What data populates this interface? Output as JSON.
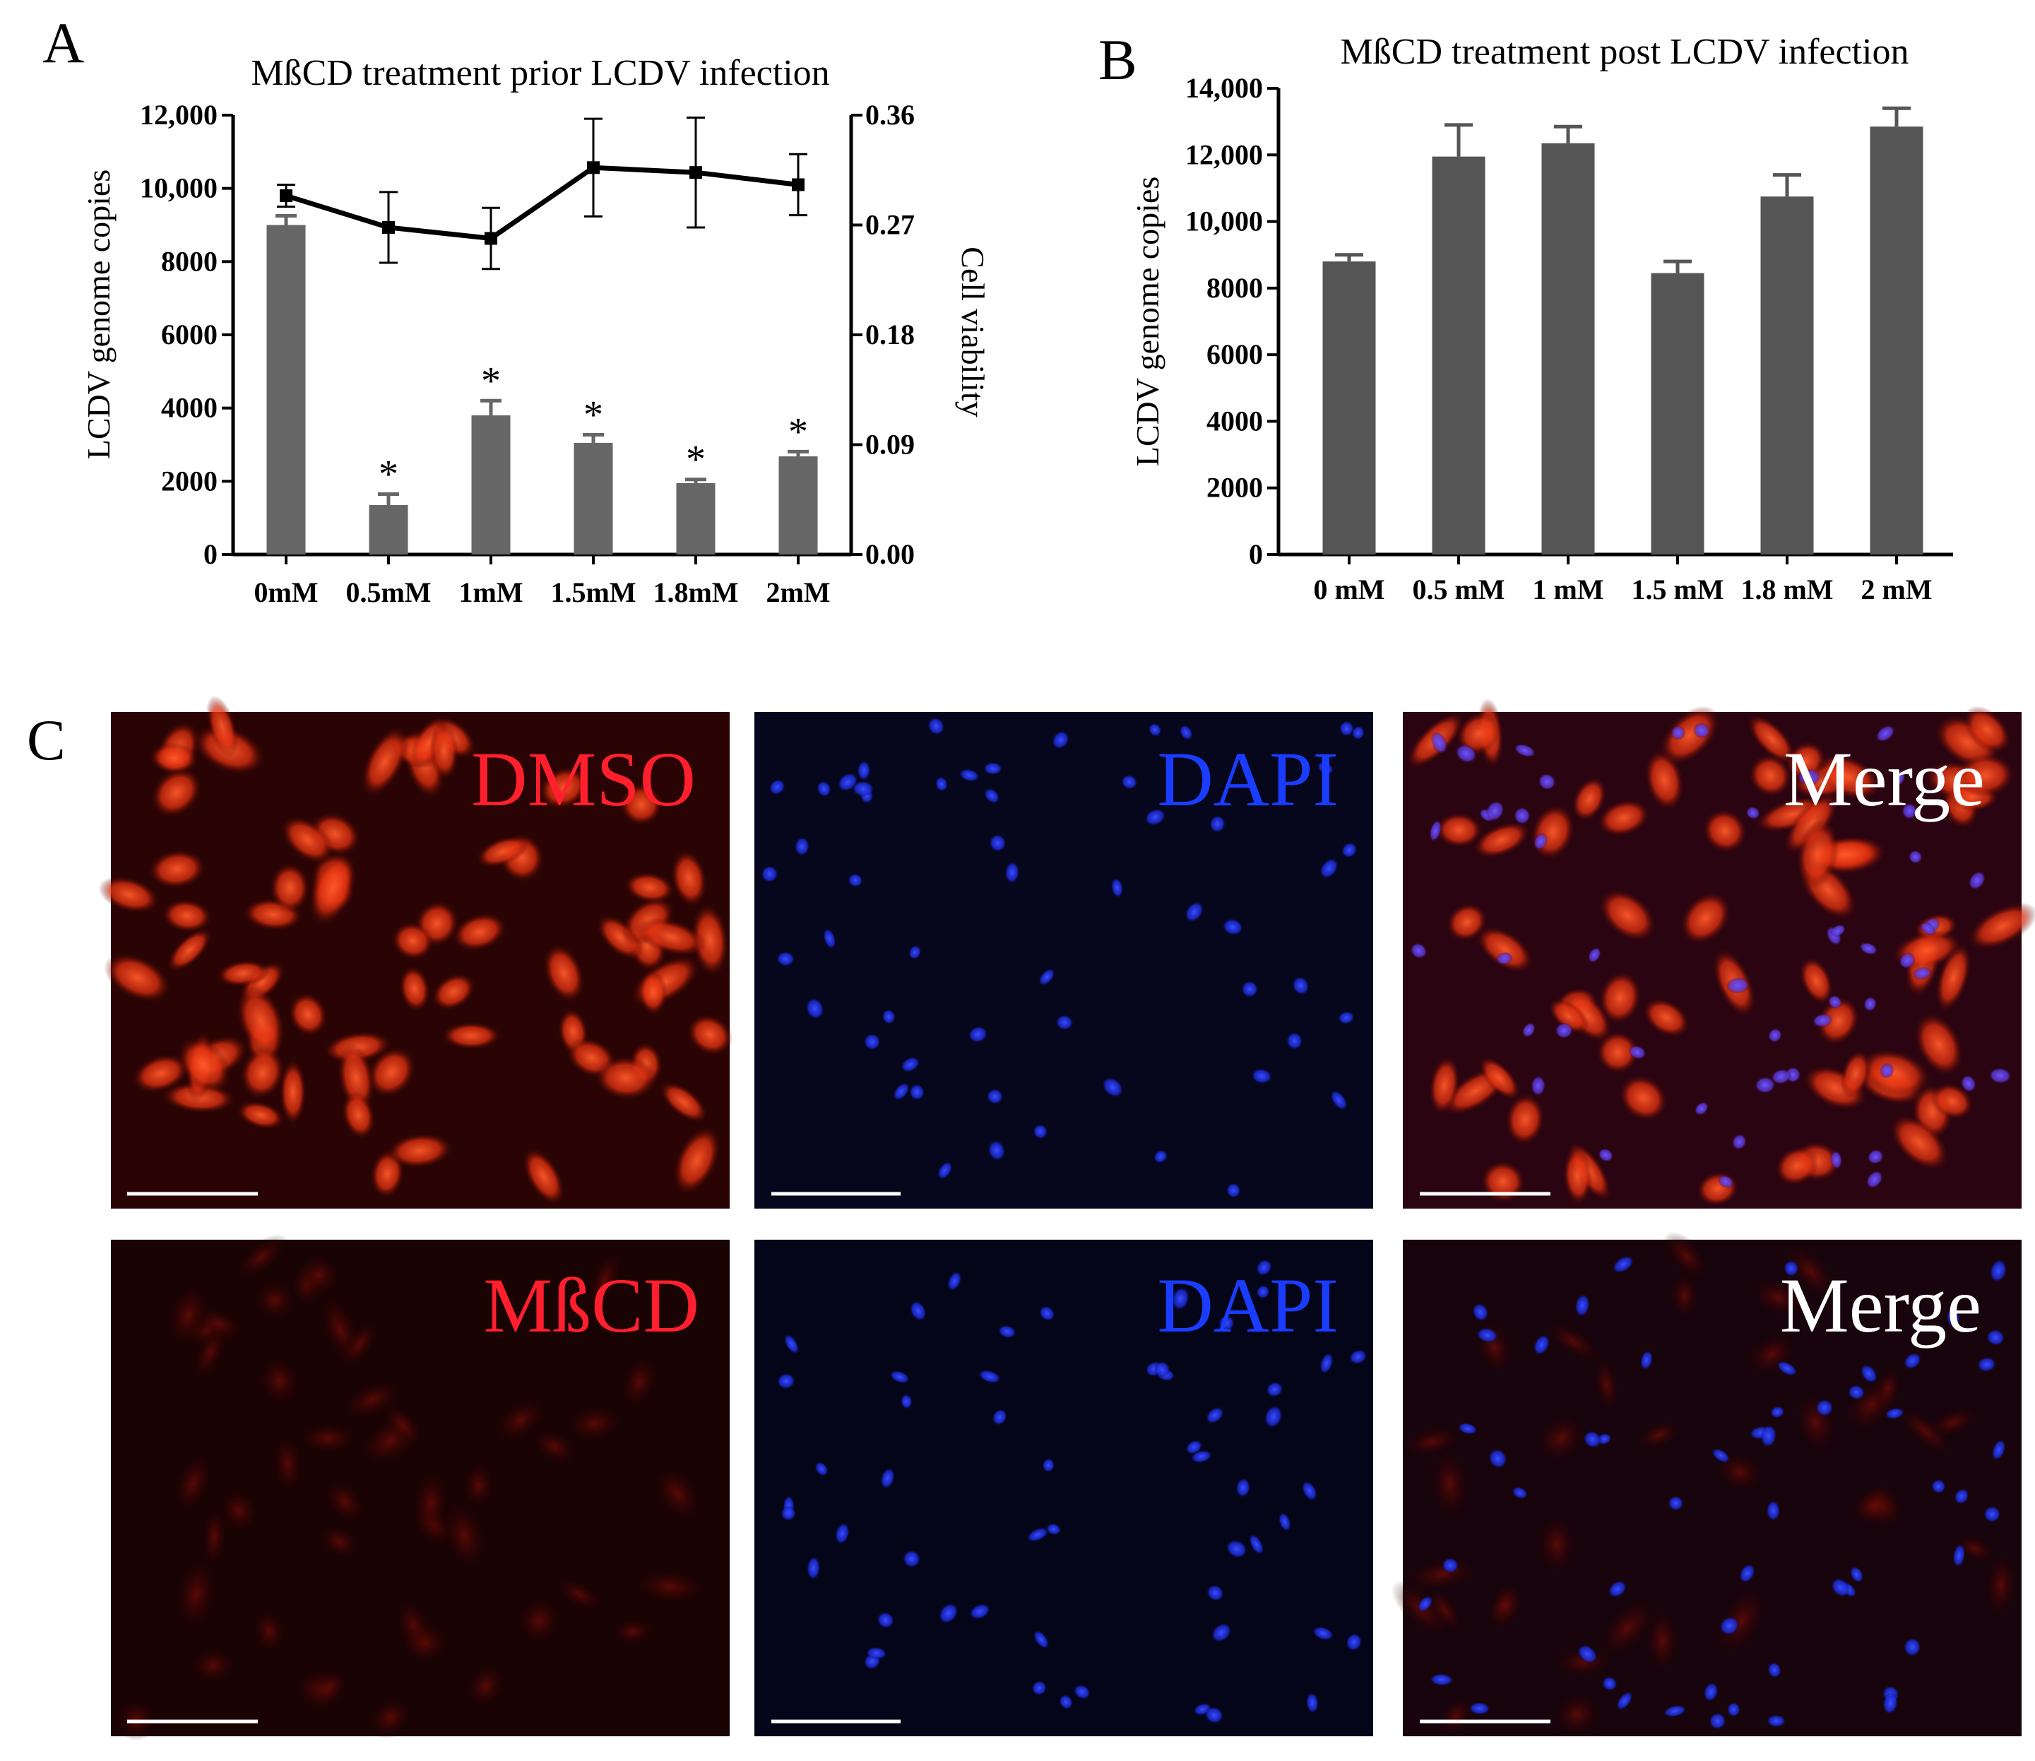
{
  "panels": {
    "a": "A",
    "b": "B",
    "c": "C"
  },
  "chart_data": [
    {
      "type": "bar",
      "title": "MßCD treatment prior LCDV infection",
      "categories": [
        "0mM",
        "0.5mM",
        "1mM",
        "1.5mM",
        "1.8mM",
        "2mM"
      ],
      "ylabel": "LCDV genome copies",
      "ylim": [
        0,
        12000
      ],
      "yticks": [
        "0",
        "2000",
        "4000",
        "6000",
        "8000",
        "10,000",
        "12,000"
      ],
      "series": [
        {
          "values": [
            9000,
            1350,
            3800,
            3050,
            1950,
            2680
          ],
          "error": [
            250,
            300,
            400,
            220,
            100,
            130
          ],
          "significance": [
            "",
            "*",
            "*",
            "*",
            "*",
            "*"
          ],
          "color": "#666666"
        }
      ],
      "secondary_axis": {
        "ylabel": "Cell viability",
        "ylim": [
          0,
          0.36
        ],
        "yticks": [
          "0.00",
          "0.09",
          "0.18",
          "0.27",
          "0.36"
        ],
        "series": [
          {
            "type": "line",
            "values": [
              0.294,
              0.268,
              0.259,
              0.317,
              0.313,
              0.303
            ],
            "error": [
              0.009,
              0.029,
              0.025,
              0.04,
              0.045,
              0.025
            ],
            "color": "#000000"
          }
        ]
      },
      "grid": false
    },
    {
      "type": "bar",
      "title": "MßCD treatment post LCDV infection",
      "categories": [
        "0 mM",
        "0.5 mM",
        "1 mM",
        "1.5 mM",
        "1.8 mM",
        "2 mM"
      ],
      "ylabel": "LCDV genome copies",
      "ylim": [
        0,
        14000
      ],
      "yticks": [
        "0",
        "2000",
        "4000",
        "6000",
        "8000",
        "10,000",
        "12,000",
        "14,000"
      ],
      "series": [
        {
          "values": [
            8800,
            11950,
            12350,
            8450,
            10750,
            12850
          ],
          "error": [
            200,
            950,
            500,
            350,
            650,
            550
          ],
          "color": "#555555"
        }
      ],
      "grid": false
    }
  ],
  "micrographs": {
    "row1": [
      "DMSO",
      "DAPI",
      "Merge"
    ],
    "row2": [
      "MßCD",
      "DAPI",
      "Merge"
    ],
    "colors": {
      "red": "#ff1f2d",
      "blue": "#1a3cff",
      "white": "#ffffff"
    }
  }
}
